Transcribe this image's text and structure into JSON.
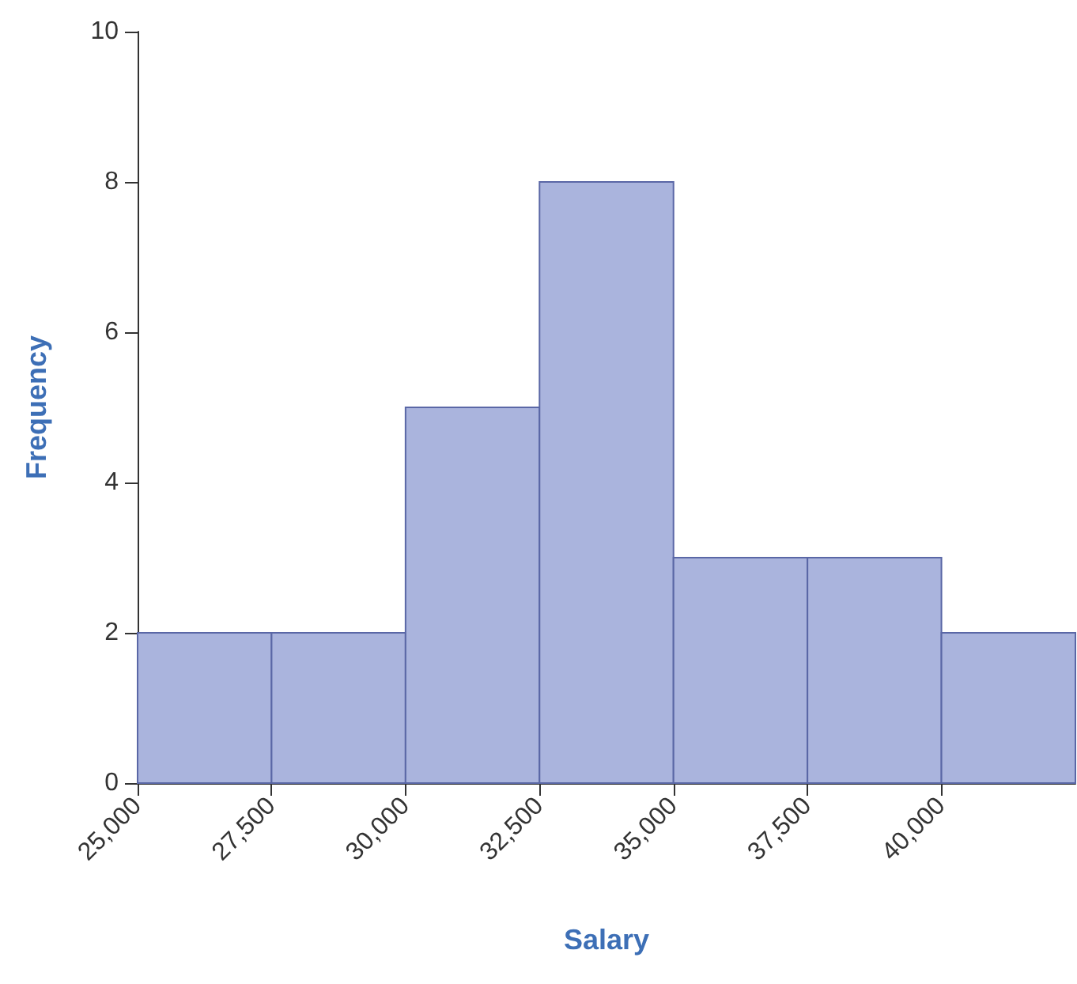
{
  "chart_data": {
    "type": "histogram",
    "xlabel": "Salary",
    "ylabel": "Frequency",
    "bins": [
      25000,
      27500,
      30000,
      32500,
      35000,
      37500,
      40000,
      42500
    ],
    "values": [
      2,
      2,
      5,
      8,
      3,
      3,
      2
    ],
    "color": "#aab4dd",
    "xlim": [
      25000,
      42500
    ],
    "xticks": [
      {
        "value": 25000,
        "label": "25,000"
      },
      {
        "value": 27500,
        "label": "27,500"
      },
      {
        "value": 30000,
        "label": "30,000"
      },
      {
        "value": 32500,
        "label": "32,500"
      },
      {
        "value": 35000,
        "label": "35,000"
      },
      {
        "value": 37500,
        "label": "37,500"
      },
      {
        "value": 40000,
        "label": "40,000"
      }
    ],
    "ylim": [
      0,
      10
    ],
    "yticks": [
      0,
      2,
      4,
      6,
      8,
      10
    ],
    "grid": false
  }
}
